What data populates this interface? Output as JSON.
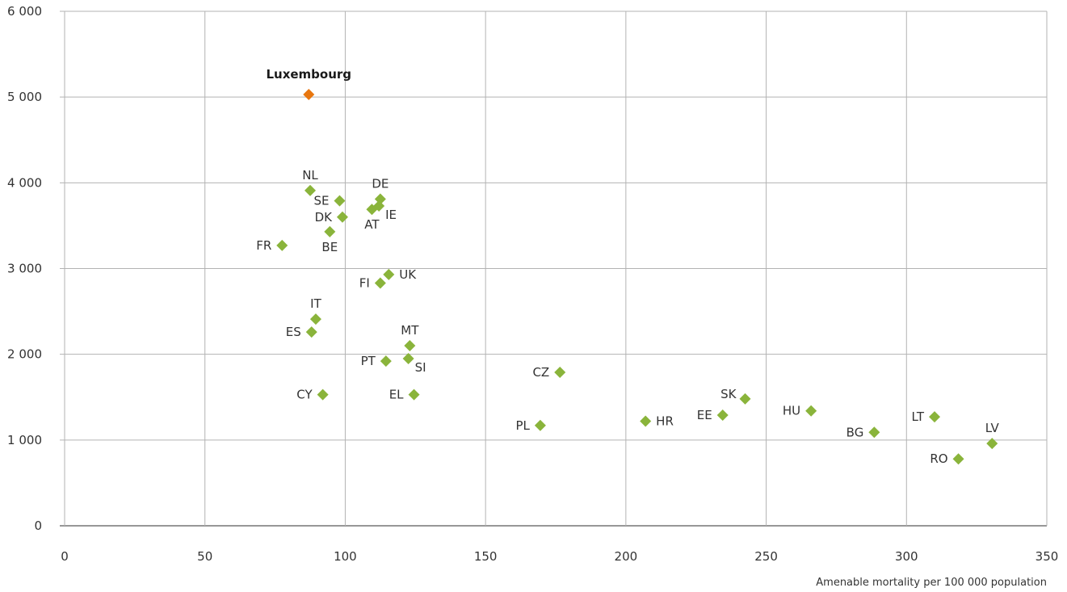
{
  "chart_data": {
    "type": "scatter",
    "title": "",
    "xlabel": "Amenable mortality per 100 000 population",
    "ylabel": "",
    "xlim": [
      0,
      350
    ],
    "ylim": [
      0,
      6000
    ],
    "x_ticks": [
      0,
      50,
      100,
      150,
      200,
      250,
      300,
      350
    ],
    "x_tick_labels": [
      "0",
      "50",
      "100",
      "150",
      "200",
      "250",
      "300",
      "350"
    ],
    "y_ticks": [
      0,
      1000,
      2000,
      3000,
      4000,
      5000,
      6000
    ],
    "y_tick_labels": [
      "0",
      "1 000",
      "2 000",
      "3 000",
      "4 000",
      "5 000",
      "6 000"
    ],
    "grid": true,
    "legend": "none",
    "colors": {
      "default": "#8ab43b",
      "highlight": "#e8760e"
    },
    "points": [
      {
        "label": "Luxembourg",
        "x": 87,
        "y": 5030,
        "highlight": true,
        "pos": "top"
      },
      {
        "label": "NL",
        "x": 87.5,
        "y": 3910,
        "pos": "top"
      },
      {
        "label": "SE",
        "x": 98,
        "y": 3790,
        "pos": "left"
      },
      {
        "label": "DE",
        "x": 112.5,
        "y": 3810,
        "pos": "top"
      },
      {
        "label": "IE",
        "x": 112,
        "y": 3730,
        "pos": "right-below"
      },
      {
        "label": "AT",
        "x": 109.5,
        "y": 3690,
        "pos": "below"
      },
      {
        "label": "DK",
        "x": 99,
        "y": 3600,
        "pos": "left"
      },
      {
        "label": "BE",
        "x": 94.5,
        "y": 3430,
        "pos": "below"
      },
      {
        "label": "FR",
        "x": 77.5,
        "y": 3270,
        "pos": "left"
      },
      {
        "label": "UK",
        "x": 115.5,
        "y": 2930,
        "pos": "right"
      },
      {
        "label": "FI",
        "x": 112.5,
        "y": 2830,
        "pos": "left"
      },
      {
        "label": "IT",
        "x": 89.5,
        "y": 2410,
        "pos": "top"
      },
      {
        "label": "ES",
        "x": 88,
        "y": 2260,
        "pos": "left"
      },
      {
        "label": "MT",
        "x": 123,
        "y": 2100,
        "pos": "top"
      },
      {
        "label": "PT",
        "x": 114.5,
        "y": 1920,
        "pos": "left"
      },
      {
        "label": "SI",
        "x": 122.5,
        "y": 1950,
        "pos": "right-below"
      },
      {
        "label": "CZ",
        "x": 176.5,
        "y": 1790,
        "pos": "left"
      },
      {
        "label": "CY",
        "x": 92,
        "y": 1530,
        "pos": "left"
      },
      {
        "label": "EL",
        "x": 124.5,
        "y": 1530,
        "pos": "left"
      },
      {
        "label": "SK",
        "x": 242.5,
        "y": 1480,
        "pos": "left-above"
      },
      {
        "label": "HU",
        "x": 266,
        "y": 1340,
        "pos": "left"
      },
      {
        "label": "LT",
        "x": 310,
        "y": 1270,
        "pos": "left"
      },
      {
        "label": "EE",
        "x": 234.5,
        "y": 1290,
        "pos": "left"
      },
      {
        "label": "HR",
        "x": 207,
        "y": 1220,
        "pos": "right"
      },
      {
        "label": "PL",
        "x": 169.5,
        "y": 1170,
        "pos": "left"
      },
      {
        "label": "BG",
        "x": 288.5,
        "y": 1090,
        "pos": "left"
      },
      {
        "label": "LV",
        "x": 330.5,
        "y": 960,
        "pos": "top"
      },
      {
        "label": "RO",
        "x": 318.5,
        "y": 780,
        "pos": "left"
      }
    ]
  }
}
